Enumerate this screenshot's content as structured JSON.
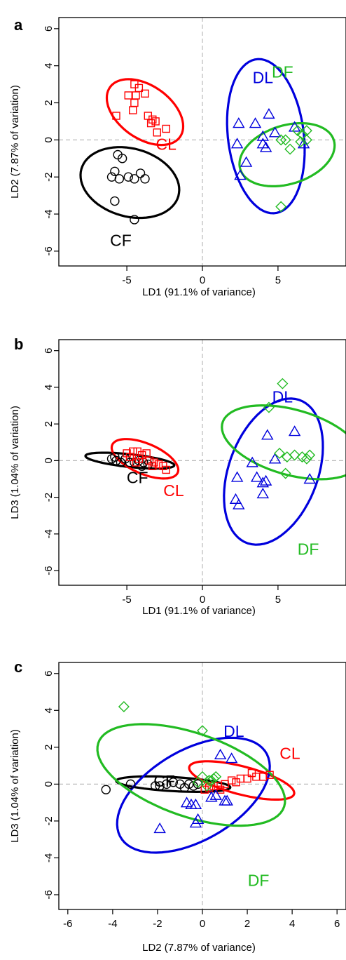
{
  "colors": {
    "CF": "#000000",
    "CL": "#ff0000",
    "DL": "#0000dd",
    "DF": "#22bb22",
    "refline": "#bbbbbb"
  },
  "markers": {
    "CF": "circle",
    "CL": "square",
    "DL": "triangle",
    "DF": "diamond"
  },
  "chart_data": [
    {
      "panel": "a",
      "type": "scatter",
      "xlabel": "LD1 (91.1% of variance)",
      "ylabel": "LD2 (7.87% of variation)",
      "xlim": [
        -9.5,
        9.5
      ],
      "ylim": [
        -6.8,
        6.6
      ],
      "xticks": [
        -5,
        0,
        5
      ],
      "yticks": [
        -6,
        -4,
        -2,
        0,
        2,
        4,
        6
      ],
      "reference_lines": {
        "x": 0,
        "y": 0
      },
      "series": [
        {
          "name": "CF",
          "points": [
            [
              -5.6,
              -0.8
            ],
            [
              -5.3,
              -1.0
            ],
            [
              -5.8,
              -1.7
            ],
            [
              -6.0,
              -2.0
            ],
            [
              -5.5,
              -2.1
            ],
            [
              -4.9,
              -2.0
            ],
            [
              -4.5,
              -2.1
            ],
            [
              -4.1,
              -1.8
            ],
            [
              -3.8,
              -2.1
            ],
            [
              -5.8,
              -3.3
            ],
            [
              -4.5,
              -4.3
            ]
          ],
          "ellipse": {
            "cx": -4.8,
            "cy": -2.3,
            "rx": 1.85,
            "ry": 3.3,
            "angle": 80
          }
        },
        {
          "name": "CL",
          "points": [
            [
              -4.5,
              3.0
            ],
            [
              -4.2,
              2.8
            ],
            [
              -4.9,
              2.4
            ],
            [
              -4.4,
              2.4
            ],
            [
              -3.8,
              2.5
            ],
            [
              -4.5,
              2.0
            ],
            [
              -4.6,
              1.6
            ],
            [
              -3.6,
              1.3
            ],
            [
              -3.3,
              1.1
            ],
            [
              -3.1,
              1.0
            ],
            [
              -3.4,
              0.9
            ],
            [
              -2.4,
              0.6
            ],
            [
              -5.7,
              1.3
            ],
            [
              -3.0,
              0.4
            ]
          ],
          "ellipse": {
            "cx": -3.8,
            "cy": 1.5,
            "rx": 1.5,
            "ry": 2.7,
            "angle": 65
          }
        },
        {
          "name": "DL",
          "points": [
            [
              4.4,
              1.4
            ],
            [
              2.4,
              0.9
            ],
            [
              3.5,
              0.9
            ],
            [
              4.0,
              0.2
            ],
            [
              4.8,
              0.4
            ],
            [
              6.1,
              0.7
            ],
            [
              2.3,
              -0.2
            ],
            [
              4.0,
              -0.2
            ],
            [
              4.2,
              -0.4
            ],
            [
              2.9,
              -1.2
            ],
            [
              2.5,
              -1.9
            ],
            [
              6.7,
              -0.2
            ]
          ],
          "ellipse": {
            "cx": 4.2,
            "cy": 0.2,
            "rx": 4.2,
            "ry": 2.5,
            "angle": 100
          }
        },
        {
          "name": "DF",
          "points": [
            [
              5.2,
              0.0
            ],
            [
              5.5,
              0.0
            ],
            [
              5.8,
              -0.5
            ],
            [
              6.3,
              0.5
            ],
            [
              6.6,
              0.3
            ],
            [
              6.9,
              0.5
            ],
            [
              6.5,
              -0.1
            ],
            [
              6.9,
              0.0
            ],
            [
              5.2,
              -3.6
            ]
          ],
          "ellipse": {
            "cx": 5.6,
            "cy": -0.8,
            "rx": 1.6,
            "ry": 3.2,
            "angle": 102
          }
        }
      ],
      "group_labels": [
        {
          "text": "DL",
          "x": 4.0,
          "y": 3.3,
          "group": "DL"
        },
        {
          "text": "DF",
          "x": 5.3,
          "y": 3.6,
          "group": "DF"
        },
        {
          "text": "CL",
          "x": -2.4,
          "y": -0.3,
          "group": "CL"
        },
        {
          "text": "CF",
          "x": -5.4,
          "y": -5.5,
          "group": "CF"
        }
      ]
    },
    {
      "panel": "b",
      "type": "scatter",
      "xlabel": "LD1 (91.1% of variance)",
      "ylabel": "LD3 (1.04% of variation)",
      "xlim": [
        -9.5,
        9.5
      ],
      "ylim": [
        -6.8,
        6.6
      ],
      "xticks": [
        -5,
        0,
        5
      ],
      "yticks": [
        -6,
        -4,
        -2,
        0,
        2,
        4,
        6
      ],
      "reference_lines": {
        "x": 0,
        "y": 0
      },
      "series": [
        {
          "name": "CF",
          "points": [
            [
              -6.0,
              0.1
            ],
            [
              -5.7,
              0.0
            ],
            [
              -5.4,
              -0.1
            ],
            [
              -5.1,
              0.1
            ],
            [
              -4.8,
              -0.1
            ],
            [
              -4.5,
              -0.1
            ],
            [
              -4.2,
              0.0
            ],
            [
              -3.9,
              -0.1
            ],
            [
              -3.6,
              -0.2
            ],
            [
              -5.8,
              0.2
            ],
            [
              -4.0,
              -0.3
            ]
          ],
          "ellipse": {
            "cx": -4.8,
            "cy": 0.0,
            "rx": 2.95,
            "ry": 0.35,
            "angle": -5
          }
        },
        {
          "name": "CL",
          "points": [
            [
              -5.0,
              0.4
            ],
            [
              -4.6,
              0.5
            ],
            [
              -4.3,
              0.5
            ],
            [
              -4.0,
              0.3
            ],
            [
              -3.7,
              0.4
            ],
            [
              -4.8,
              0.2
            ],
            [
              -4.2,
              0.1
            ],
            [
              -3.5,
              0.0
            ],
            [
              -3.2,
              -0.1
            ],
            [
              -2.9,
              -0.2
            ],
            [
              -2.6,
              -0.3
            ],
            [
              -2.4,
              -0.5
            ],
            [
              -4.4,
              -0.1
            ],
            [
              -3.3,
              -0.3
            ]
          ],
          "ellipse": {
            "cx": -3.8,
            "cy": 0.1,
            "rx": 2.3,
            "ry": 0.85,
            "angle": -18
          }
        },
        {
          "name": "DL",
          "points": [
            [
              4.3,
              1.4
            ],
            [
              6.1,
              1.6
            ],
            [
              4.8,
              0.1
            ],
            [
              2.3,
              -0.9
            ],
            [
              3.6,
              -0.9
            ],
            [
              4.0,
              -1.2
            ],
            [
              4.2,
              -1.1
            ],
            [
              7.1,
              -1.0
            ],
            [
              2.2,
              -2.1
            ],
            [
              2.4,
              -2.4
            ],
            [
              4.0,
              -1.8
            ],
            [
              3.3,
              -0.1
            ]
          ],
          "ellipse": {
            "cx": 4.7,
            "cy": -0.6,
            "rx": 4.3,
            "ry": 2.85,
            "angle": 60
          }
        },
        {
          "name": "DF",
          "points": [
            [
              5.3,
              4.2
            ],
            [
              4.4,
              2.9
            ],
            [
              5.1,
              0.4
            ],
            [
              5.6,
              0.2
            ],
            [
              6.1,
              0.3
            ],
            [
              6.6,
              0.2
            ],
            [
              6.9,
              0.1
            ],
            [
              7.1,
              0.3
            ],
            [
              5.5,
              -0.7
            ]
          ],
          "ellipse": {
            "cx": 5.9,
            "cy": 1.0,
            "rx": 1.8,
            "ry": 4.7,
            "angle": 78
          }
        }
      ],
      "group_labels": [
        {
          "text": "DL",
          "x": 5.3,
          "y": 3.4,
          "group": "DL"
        },
        {
          "text": "DF",
          "x": 7.0,
          "y": -4.9,
          "group": "DF"
        },
        {
          "text": "CL",
          "x": -1.9,
          "y": -1.7,
          "group": "CL"
        },
        {
          "text": "CF",
          "x": -4.3,
          "y": -1.0,
          "group": "CF"
        }
      ]
    },
    {
      "panel": "c",
      "type": "scatter",
      "xlabel": "LD2 (7.87% of variance)",
      "ylabel": "LD3 (1.04% of variation)",
      "xlim": [
        -6.4,
        6.4
      ],
      "ylim": [
        -6.8,
        6.6
      ],
      "xticks": [
        -6,
        -4,
        -2,
        0,
        2,
        4,
        6
      ],
      "yticks": [
        -6,
        -4,
        -2,
        0,
        2,
        4,
        6
      ],
      "reference_lines": {
        "x": 0,
        "y": 0
      },
      "series": [
        {
          "name": "CF",
          "points": [
            [
              -4.3,
              -0.3
            ],
            [
              -3.2,
              0.0
            ],
            [
              -2.1,
              -0.1
            ],
            [
              -1.9,
              -0.1
            ],
            [
              -1.3,
              0.1
            ],
            [
              -1.0,
              0.0
            ],
            [
              -0.6,
              0.0
            ],
            [
              -0.4,
              -0.1
            ],
            [
              -0.2,
              0.0
            ],
            [
              -0.8,
              -0.2
            ],
            [
              -1.6,
              0.0
            ]
          ],
          "ellipse": {
            "cx": -1.3,
            "cy": 0.0,
            "rx": 2.55,
            "ry": 0.38,
            "angle": -4
          }
        },
        {
          "name": "CL",
          "points": [
            [
              3.0,
              0.5
            ],
            [
              2.7,
              0.4
            ],
            [
              2.4,
              0.4
            ],
            [
              2.0,
              0.3
            ],
            [
              1.7,
              0.3
            ],
            [
              1.3,
              0.2
            ],
            [
              1.0,
              0.0
            ],
            [
              0.7,
              -0.1
            ],
            [
              0.3,
              -0.2
            ],
            [
              0.1,
              -0.3
            ],
            [
              0.5,
              -0.1
            ],
            [
              2.2,
              0.6
            ],
            [
              1.5,
              0.1
            ],
            [
              0.8,
              -0.3
            ]
          ],
          "ellipse": {
            "cx": 1.75,
            "cy": 0.2,
            "rx": 2.45,
            "ry": 0.75,
            "angle": -18
          }
        },
        {
          "name": "DL",
          "points": [
            [
              0.8,
              1.6
            ],
            [
              1.3,
              1.4
            ],
            [
              -0.3,
              -1.1
            ],
            [
              1.0,
              -0.9
            ],
            [
              1.1,
              -0.9
            ],
            [
              -0.7,
              -1.0
            ],
            [
              -0.5,
              -1.1
            ],
            [
              0.6,
              -0.6
            ],
            [
              -0.2,
              -1.9
            ],
            [
              -0.3,
              -2.1
            ],
            [
              -1.9,
              -2.4
            ],
            [
              0.4,
              -0.7
            ]
          ],
          "ellipse": {
            "cx": -0.4,
            "cy": -0.6,
            "rx": 4.0,
            "ry": 2.3,
            "angle": 40
          }
        },
        {
          "name": "DF",
          "points": [
            [
              -3.5,
              4.2
            ],
            [
              0.0,
              2.9
            ],
            [
              0.0,
              0.4
            ],
            [
              0.3,
              0.2
            ],
            [
              0.5,
              0.3
            ],
            [
              0.2,
              -0.1
            ],
            [
              -0.2,
              0.1
            ],
            [
              0.6,
              0.4
            ],
            [
              0.4,
              0.2
            ]
          ],
          "ellipse": {
            "cx": -0.5,
            "cy": 0.5,
            "rx": 2.2,
            "ry": 4.5,
            "angle": 65
          }
        }
      ],
      "group_labels": [
        {
          "text": "DL",
          "x": 1.4,
          "y": 2.8,
          "group": "DL"
        },
        {
          "text": "CL",
          "x": 3.9,
          "y": 1.6,
          "group": "CL"
        },
        {
          "text": "CF",
          "x": -1.7,
          "y": 0.1,
          "group": "CF"
        },
        {
          "text": "DF",
          "x": 2.5,
          "y": -5.3,
          "group": "DF"
        }
      ]
    }
  ]
}
